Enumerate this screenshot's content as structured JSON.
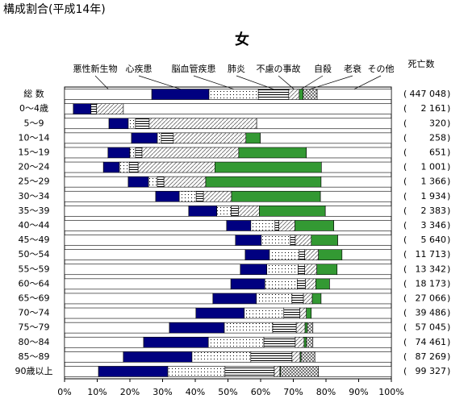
{
  "chart_data": {
    "type": "stacked-bar-horizontal",
    "page_title": "構成割合(平成14年)",
    "title": "女",
    "deaths_header": "死亡数",
    "death_brackets": [
      "(",
      ")"
    ],
    "categories": [
      "総 数",
      "0～4歳",
      "5～9",
      "10～14",
      "15～19",
      "20～24",
      "25～29",
      "30～34",
      "35～39",
      "40～44",
      "45～49",
      "50～54",
      "55～59",
      "60～64",
      "65～69",
      "70～74",
      "75～79",
      "80～84",
      "85～89",
      "90歳以上"
    ],
    "deaths": [
      "447 048",
      "2 161",
      "320",
      "258",
      "651",
      "1 001",
      "1 366",
      "1 934",
      "2 383",
      "3 346",
      "5 640",
      "11 713",
      "13 342",
      "18 173",
      "27 066",
      "39 486",
      "57 045",
      "74 461",
      "87 269",
      "99 327"
    ],
    "series": [
      {
        "name": "悪性新生物",
        "color": "#ffffff",
        "pattern": "none",
        "values": [
          26.7,
          2.7,
          13.6,
          20.5,
          13.3,
          11.9,
          19.5,
          27.9,
          38,
          49.6,
          52.3,
          55.3,
          53.8,
          50.9,
          45.4,
          40.2,
          32.1,
          24.2,
          18,
          10.4
        ]
      },
      {
        "name": "心疾患",
        "color": "#000080",
        "pattern": "none",
        "values": [
          17.5,
          5.4,
          5.9,
          7.9,
          6.7,
          4.9,
          6.2,
          7.2,
          8.6,
          7.4,
          7.9,
          7.4,
          8.1,
          10.4,
          13.3,
          14.8,
          16.8,
          19.8,
          21,
          21.2
        ]
      },
      {
        "name": "脳血管疾患",
        "color": "#ffffff",
        "pattern": "dots",
        "values": [
          15.1,
          0,
          2.2,
          1.2,
          1.7,
          3,
          2.7,
          5.2,
          4.4,
          7.4,
          8.9,
          9.1,
          9.6,
          9.9,
          10.9,
          12.1,
          14.8,
          17,
          18,
          17.5
        ]
      },
      {
        "name": "肺炎",
        "color": "#ffffff",
        "pattern": "hstripes",
        "values": [
          9.3,
          1.7,
          4.2,
          3.7,
          2,
          2.7,
          2,
          2.2,
          2.2,
          1.2,
          1.5,
          1.7,
          2,
          2.5,
          3.5,
          4.9,
          7.2,
          9.6,
          12.6,
          15.1
        ]
      },
      {
        "name": "不慮の事故",
        "color": "#ffffff",
        "pattern": "diag",
        "values": [
          3.2,
          8.2,
          32.9,
          22.2,
          29.6,
          23.5,
          12.8,
          8.6,
          6.4,
          4.9,
          4.9,
          4.2,
          3.7,
          3.2,
          2.7,
          2,
          2.7,
          2.7,
          2.5,
          1.7
        ]
      },
      {
        "name": "自殺",
        "color": "#339933",
        "pattern": "none",
        "values": [
          1.2,
          0,
          0,
          4.4,
          20.7,
          32.6,
          35.3,
          27.2,
          20.2,
          11.9,
          8.1,
          7.2,
          6.2,
          4.2,
          2.7,
          1.5,
          0.7,
          0.7,
          0.3,
          0.2
        ]
      },
      {
        "name": "老衰",
        "color": "#ffffff",
        "pattern": "cross",
        "values": [
          4.3,
          0,
          0,
          0,
          0,
          0,
          0,
          0,
          0,
          0,
          0,
          0,
          0,
          0,
          0,
          0,
          1.7,
          2,
          4.2,
          11.6
        ]
      },
      {
        "name": "その他",
        "color": "#ffffff",
        "pattern": "none",
        "values": [
          22.7,
          82,
          41.2,
          40.1,
          26,
          21.4,
          21.5,
          21.7,
          20.2,
          17.6,
          16.4,
          15.1,
          16.6,
          18.9,
          21.5,
          24.5,
          24,
          24,
          23.4,
          22.3
        ]
      }
    ],
    "xlim": [
      0,
      100
    ],
    "xticks": [
      {
        "value": 0,
        "label": "0%"
      },
      {
        "value": 10,
        "label": "10%"
      },
      {
        "value": 20,
        "label": "20%"
      },
      {
        "value": 30,
        "label": "30%"
      },
      {
        "value": 40,
        "label": "40%"
      },
      {
        "value": 50,
        "label": "50%"
      },
      {
        "value": 60,
        "label": "60%"
      },
      {
        "value": 70,
        "label": "70%"
      },
      {
        "value": 80,
        "label": "80%"
      },
      {
        "value": 90,
        "label": "90%"
      },
      {
        "value": 100,
        "label": "100%"
      }
    ]
  }
}
